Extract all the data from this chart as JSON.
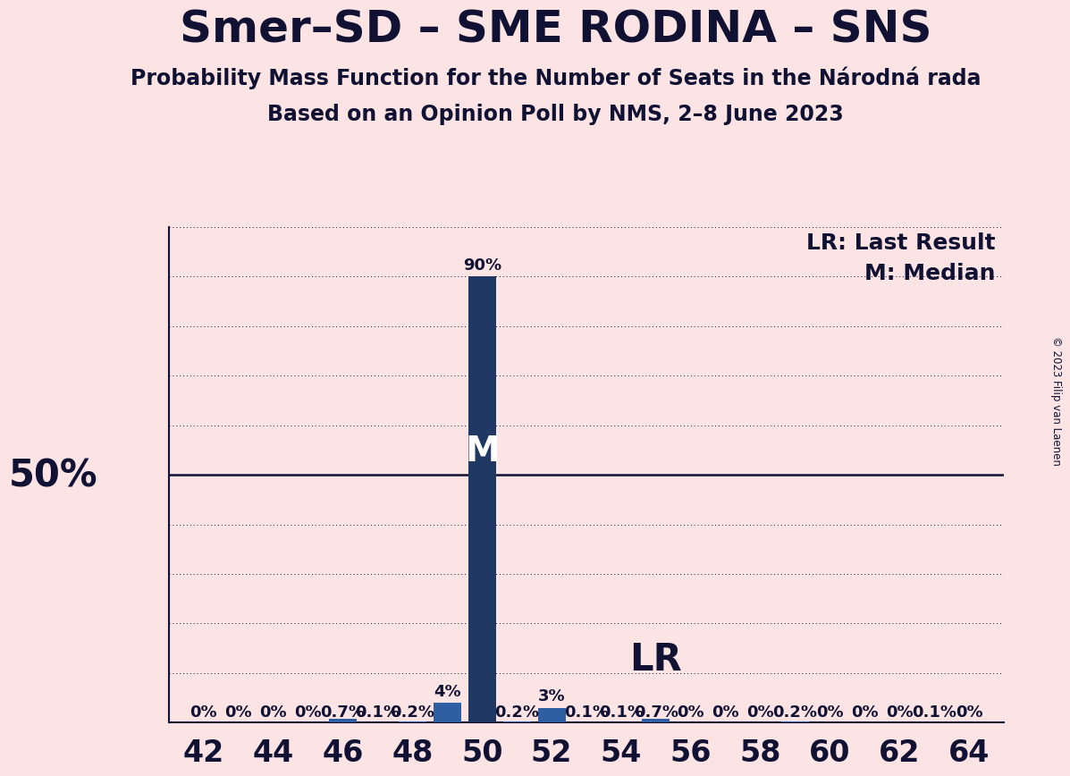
{
  "title": "Smer–SD – SME RODINA – SNS",
  "subtitle1": "Probability Mass Function for the Number of Seats in the Národná rada",
  "subtitle2": "Based on an Opinion Poll by NMS, 2–8 June 2023",
  "copyright": "© 2023 Filip van Laenen",
  "legend_lr": "LR: Last Result",
  "legend_m": "M: Median",
  "background_color": "#fce4e4",
  "bar_color_main": "#1f3864",
  "bar_color_small": "#2e5fa3",
  "text_color": "#111133",
  "seats": [
    42,
    43,
    44,
    45,
    46,
    47,
    48,
    49,
    50,
    51,
    52,
    53,
    54,
    55,
    56,
    57,
    58,
    59,
    60,
    61,
    62,
    63,
    64
  ],
  "probabilities": [
    0.0,
    0.0,
    0.0,
    0.0,
    0.7,
    0.1,
    0.2,
    4.0,
    90.0,
    0.2,
    3.0,
    0.1,
    0.1,
    0.7,
    0.0,
    0.0,
    0.0,
    0.2,
    0.0,
    0.0,
    0.0,
    0.1,
    0.0
  ],
  "labels": [
    "0%",
    "0%",
    "0%",
    "0%",
    "0.7%",
    "0.1%",
    "0.2%",
    "4%",
    "90%",
    "0.2%",
    "3%",
    "0.1%",
    "0.1%",
    "0.7%",
    "0%",
    "0%",
    "0%",
    "0.2%",
    "0%",
    "0%",
    "0%",
    "0.1%",
    "0%"
  ],
  "median_seat": 50,
  "lr_seat": 55,
  "fifty_pct_line": 50.0,
  "y_max": 100.0,
  "xmin": 41,
  "xmax": 65,
  "xlabel_ticks": [
    42,
    44,
    46,
    48,
    50,
    52,
    54,
    56,
    58,
    60,
    62,
    64
  ],
  "grid_y_values": [
    10,
    20,
    30,
    40,
    50,
    60,
    70,
    80,
    90,
    100
  ],
  "title_fontsize": 36,
  "subtitle_fontsize": 17,
  "axis_tick_fontsize": 24,
  "bar_label_fontsize": 13,
  "legend_fontsize": 18,
  "median_label_fontsize": 28,
  "lr_label_fontsize": 30,
  "fifty_label_fontsize": 30
}
